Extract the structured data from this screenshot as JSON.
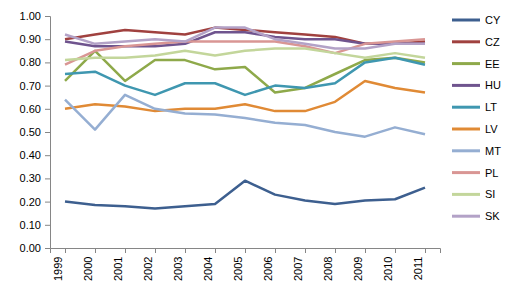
{
  "chart_data": {
    "type": "line",
    "categories": [
      "1999",
      "2000",
      "2001",
      "2002",
      "2003",
      "2004",
      "2005",
      "2006",
      "2007",
      "2008",
      "2009",
      "2010",
      "2011"
    ],
    "series": [
      {
        "name": "CY",
        "color": "#3d5f8f",
        "values": [
          0.2,
          0.185,
          0.18,
          0.17,
          0.18,
          0.19,
          0.29,
          0.23,
          0.205,
          0.19,
          0.205,
          0.21,
          0.26
        ]
      },
      {
        "name": "CZ",
        "color": "#a0413f",
        "values": [
          0.9,
          0.92,
          0.94,
          0.93,
          0.92,
          0.95,
          0.94,
          0.93,
          0.92,
          0.91,
          0.88,
          0.88,
          0.89
        ]
      },
      {
        "name": "EE",
        "color": "#8ea94a",
        "values": [
          0.72,
          0.85,
          0.72,
          0.81,
          0.81,
          0.77,
          0.78,
          0.67,
          0.69,
          0.75,
          0.81,
          0.82,
          0.8
        ]
      },
      {
        "name": "HU",
        "color": "#6f548e",
        "values": [
          0.89,
          0.87,
          0.87,
          0.87,
          0.88,
          0.93,
          0.93,
          0.91,
          0.9,
          0.9,
          0.88,
          0.88,
          0.88
        ]
      },
      {
        "name": "LT",
        "color": "#3f97b0",
        "values": [
          0.75,
          0.76,
          0.7,
          0.66,
          0.71,
          0.71,
          0.66,
          0.7,
          0.69,
          0.71,
          0.8,
          0.82,
          0.79
        ]
      },
      {
        "name": "LV",
        "color": "#e08a35",
        "values": [
          0.6,
          0.62,
          0.61,
          0.59,
          0.6,
          0.6,
          0.62,
          0.59,
          0.59,
          0.63,
          0.72,
          0.69,
          0.67
        ]
      },
      {
        "name": "MT",
        "color": "#95aed2",
        "values": [
          0.64,
          0.51,
          0.66,
          0.6,
          0.58,
          0.575,
          0.56,
          0.54,
          0.53,
          0.5,
          0.48,
          0.52,
          0.49
        ]
      },
      {
        "name": "PL",
        "color": "#d99694",
        "values": [
          0.79,
          0.85,
          0.87,
          0.88,
          0.89,
          0.89,
          0.89,
          0.89,
          0.87,
          0.84,
          0.88,
          0.89,
          0.9
        ]
      },
      {
        "name": "SI",
        "color": "#c3d69b",
        "values": [
          0.81,
          0.82,
          0.82,
          0.83,
          0.85,
          0.83,
          0.85,
          0.86,
          0.86,
          0.84,
          0.82,
          0.84,
          0.82
        ]
      },
      {
        "name": "SK",
        "color": "#b3a2c7",
        "values": [
          0.92,
          0.88,
          0.89,
          0.9,
          0.89,
          0.95,
          0.95,
          0.9,
          0.88,
          0.86,
          0.86,
          0.88,
          0.88
        ]
      }
    ],
    "ylim": [
      0,
      1
    ],
    "yticks": [
      {
        "value": 0,
        "label": "0.00"
      },
      {
        "value": 0.1,
        "label": "0.10"
      },
      {
        "value": 0.2,
        "label": "0.20"
      },
      {
        "value": 0.3,
        "label": "0.30"
      },
      {
        "value": 0.4,
        "label": "0.40"
      },
      {
        "value": 0.5,
        "label": "0.50"
      },
      {
        "value": 0.6,
        "label": "0.60"
      },
      {
        "value": 0.7,
        "label": "0.70"
      },
      {
        "value": 0.8,
        "label": "0.80"
      },
      {
        "value": 0.9,
        "label": "0.90"
      },
      {
        "value": 1,
        "label": "1.00"
      }
    ],
    "grid": false,
    "legend": "right"
  }
}
